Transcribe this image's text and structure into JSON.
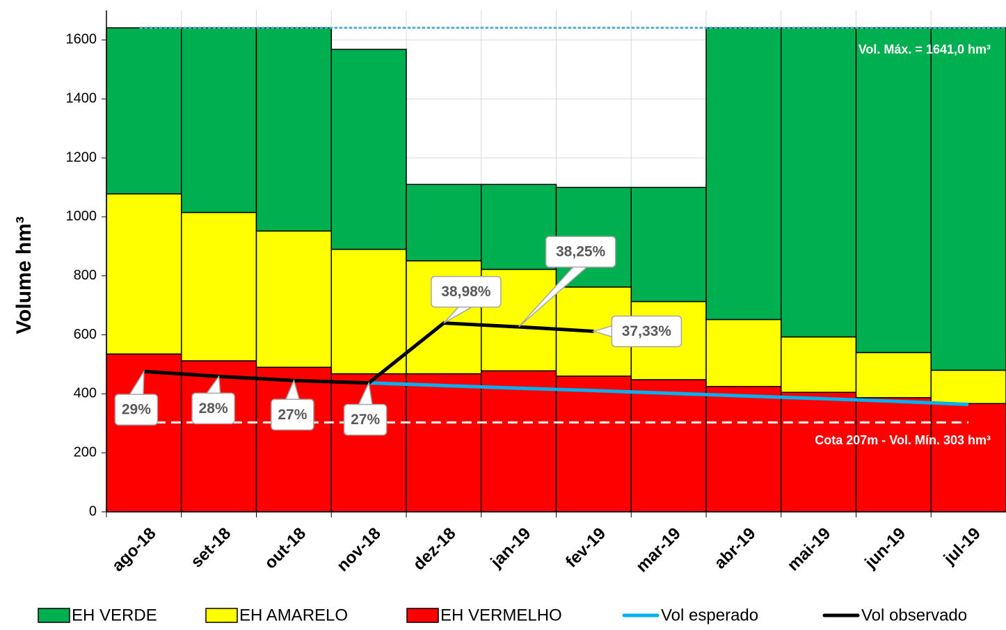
{
  "chart_data": {
    "type": "stacked_bar_line",
    "y_label": "Volume hm³",
    "categories": [
      "ago-18",
      "set-18",
      "out-18",
      "nov-18",
      "dez-18",
      "jan-19",
      "fev-19",
      "mar-19",
      "abr-19",
      "mai-19",
      "jun-19",
      "jul-19"
    ],
    "ylim": [
      0,
      1700
    ],
    "yticks": [
      0,
      200,
      400,
      600,
      800,
      1000,
      1200,
      1400,
      1600
    ],
    "grid": true,
    "series": [
      {
        "name": "EH VERMELHO",
        "color": "#ff0000",
        "values": [
          535,
          512,
          490,
          468,
          468,
          478,
          460,
          448,
          425,
          405,
          387,
          367
        ]
      },
      {
        "name": "EH AMARELO",
        "color": "#ffff00",
        "values": [
          543,
          503,
          462,
          422,
          383,
          344,
          302,
          265,
          227,
          188,
          153,
          113
        ]
      },
      {
        "name": "EH VERDE",
        "color": "#00b050",
        "values": [
          563,
          626,
          689,
          678,
          259,
          288,
          338,
          387,
          989,
          1048,
          1101,
          1161
        ]
      }
    ],
    "lines": [
      {
        "name": "Vol esperado",
        "color": "#00b0f0",
        "values": [
          null,
          null,
          null,
          437,
          428,
          419,
          411,
          402,
          393,
          384,
          375,
          364
        ]
      },
      {
        "name": "Vol observado",
        "color": "#000000",
        "values": [
          476,
          459,
          445,
          437,
          640,
          627,
          612,
          null,
          null,
          null,
          null,
          null
        ],
        "annotations": [
          "29%",
          "28%",
          "27%",
          "27%",
          "38,98%",
          "38,25%",
          "37,33%",
          null,
          null,
          null,
          null,
          null
        ]
      }
    ],
    "reference_lines": [
      {
        "value": 1641,
        "label": "Vol. Máx. = 1641,0 hm³",
        "color": "#4bacc6",
        "style": "dotted"
      },
      {
        "value": 303,
        "label": "Cota 207m - Vol. Mín. 303 hm³",
        "color": "#f2f2f2",
        "style": "dashed"
      }
    ]
  }
}
